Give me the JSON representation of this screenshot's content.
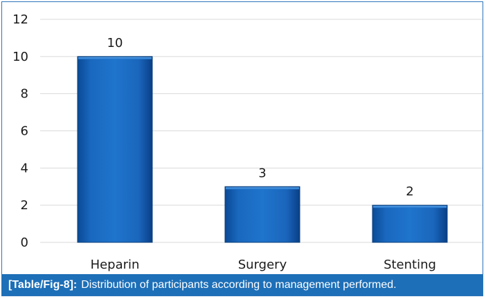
{
  "chart_data": {
    "type": "bar",
    "categories": [
      "Heparin",
      "Surgery",
      "Stenting"
    ],
    "values": [
      10,
      3,
      2
    ],
    "data_labels": [
      "10",
      "3",
      "2"
    ],
    "title": "",
    "xlabel": "",
    "ylabel": "",
    "ylim": [
      0,
      12
    ],
    "yticks": [
      0,
      2,
      4,
      6,
      8,
      10,
      12
    ],
    "grid": true,
    "legend": "none",
    "bar_color": "#1560b0",
    "bar_edge_color": "#0b3f7a"
  },
  "caption": {
    "ref": "[Table/Fig-8]:",
    "text": "Distribution of participants according to management performed."
  },
  "colors": {
    "frame": "#2a73b8",
    "caption_bg": "#1d6fb8",
    "grid": "#d9d9d9"
  }
}
